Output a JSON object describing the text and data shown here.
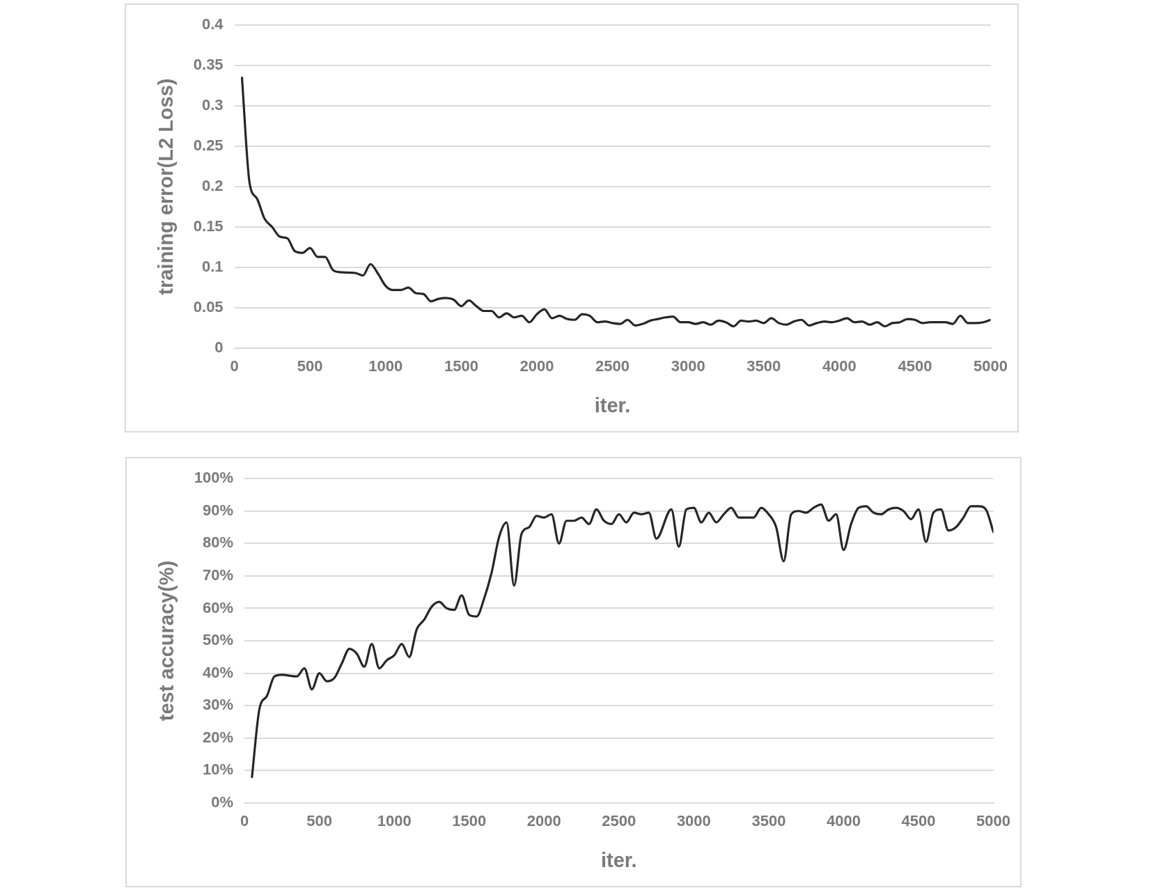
{
  "chart_data": [
    {
      "type": "line",
      "xlabel": "iter.",
      "ylabel": "training error(L2 Loss)",
      "xlim": [
        0,
        5000
      ],
      "xticks": [
        0,
        500,
        1000,
        1500,
        2000,
        2500,
        3000,
        3500,
        4000,
        4500,
        5000
      ],
      "ylim": [
        0,
        0.4
      ],
      "yticks": [
        0,
        0.05,
        0.1,
        0.15,
        0.2,
        0.25,
        0.3,
        0.35,
        0.4
      ],
      "grid": "y",
      "legend": false,
      "marker": "none",
      "line_style": "solid",
      "x": [
        50,
        100,
        150,
        200,
        250,
        300,
        350,
        400,
        450,
        500,
        550,
        600,
        650,
        700,
        800,
        850,
        900,
        950,
        1000,
        1050,
        1100,
        1150,
        1200,
        1250,
        1300,
        1350,
        1400,
        1450,
        1500,
        1550,
        1600,
        1650,
        1700,
        1750,
        1800,
        1850,
        1900,
        1950,
        2000,
        2050,
        2100,
        2150,
        2200,
        2250,
        2300,
        2350,
        2400,
        2450,
        2500,
        2550,
        2600,
        2650,
        2700,
        2750,
        2800,
        2850,
        2900,
        2950,
        3000,
        3050,
        3100,
        3150,
        3200,
        3250,
        3300,
        3350,
        3400,
        3450,
        3500,
        3550,
        3600,
        3650,
        3700,
        3750,
        3800,
        3850,
        3900,
        3950,
        4000,
        4050,
        4100,
        4150,
        4200,
        4250,
        4300,
        4350,
        4400,
        4450,
        4500,
        4550,
        4600,
        4700,
        4750,
        4800,
        4850,
        4900,
        4950,
        5000
      ],
      "series": [
        {
          "color": "#262626",
          "values": [
            0.335,
            0.205,
            0.185,
            0.16,
            0.15,
            0.138,
            0.136,
            0.12,
            0.118,
            0.124,
            0.113,
            0.113,
            0.097,
            0.094,
            0.093,
            0.09,
            0.104,
            0.092,
            0.077,
            0.072,
            0.072,
            0.075,
            0.068,
            0.067,
            0.058,
            0.061,
            0.062,
            0.06,
            0.052,
            0.059,
            0.052,
            0.046,
            0.046,
            0.038,
            0.043,
            0.038,
            0.04,
            0.032,
            0.042,
            0.048,
            0.037,
            0.04,
            0.036,
            0.035,
            0.042,
            0.04,
            0.032,
            0.033,
            0.031,
            0.03,
            0.035,
            0.028,
            0.03,
            0.034,
            0.036,
            0.038,
            0.039,
            0.032,
            0.032,
            0.03,
            0.032,
            0.029,
            0.034,
            0.032,
            0.027,
            0.034,
            0.033,
            0.034,
            0.031,
            0.037,
            0.031,
            0.029,
            0.033,
            0.035,
            0.028,
            0.031,
            0.033,
            0.032,
            0.034,
            0.037,
            0.032,
            0.033,
            0.029,
            0.032,
            0.027,
            0.031,
            0.032,
            0.036,
            0.035,
            0.031,
            0.032,
            0.032,
            0.03,
            0.04,
            0.031,
            0.031,
            0.032,
            0.035
          ]
        }
      ]
    },
    {
      "type": "line",
      "xlabel": "iter.",
      "ylabel": "test accuracy(%)",
      "xlim": [
        0,
        5000
      ],
      "xticks": [
        0,
        500,
        1000,
        1500,
        2000,
        2500,
        3000,
        3500,
        4000,
        4500,
        5000
      ],
      "ylim": [
        0,
        100
      ],
      "yticks": [
        {
          "value": 0,
          "label": "0%"
        },
        {
          "value": 10,
          "label": "10%"
        },
        {
          "value": 20,
          "label": "20%"
        },
        {
          "value": 30,
          "label": "30%"
        },
        {
          "value": 40,
          "label": "40%"
        },
        {
          "value": 50,
          "label": "50%"
        },
        {
          "value": 60,
          "label": "60%"
        },
        {
          "value": 70,
          "label": "70%"
        },
        {
          "value": 80,
          "label": "80%"
        },
        {
          "value": 90,
          "label": "90%"
        },
        {
          "value": 100,
          "label": "100%"
        }
      ],
      "grid": "y",
      "legend": false,
      "marker": "none",
      "line_style": "solid",
      "x": [
        50,
        100,
        150,
        200,
        250,
        350,
        400,
        450,
        500,
        550,
        600,
        650,
        700,
        750,
        800,
        850,
        900,
        950,
        1000,
        1050,
        1100,
        1150,
        1200,
        1250,
        1300,
        1350,
        1400,
        1450,
        1500,
        1550,
        1600,
        1650,
        1700,
        1750,
        1800,
        1850,
        1900,
        1950,
        2000,
        2050,
        2100,
        2150,
        2200,
        2250,
        2300,
        2350,
        2400,
        2450,
        2500,
        2550,
        2600,
        2650,
        2700,
        2750,
        2850,
        2900,
        2950,
        3000,
        3050,
        3100,
        3150,
        3200,
        3250,
        3300,
        3350,
        3400,
        3450,
        3500,
        3550,
        3600,
        3650,
        3700,
        3750,
        3800,
        3850,
        3900,
        3950,
        4000,
        4050,
        4100,
        4150,
        4200,
        4250,
        4300,
        4350,
        4400,
        4450,
        4500,
        4550,
        4600,
        4650,
        4700,
        4750,
        4800,
        4850,
        4900,
        4950,
        5000
      ],
      "series": [
        {
          "color": "#262626",
          "values": [
            8,
            29,
            33,
            39,
            39.5,
            39,
            41.5,
            35,
            40,
            37.5,
            38.5,
            43,
            47.5,
            46,
            42,
            49,
            41.5,
            44,
            45.5,
            49,
            45,
            53.5,
            56.5,
            60.5,
            62,
            60,
            59.5,
            64,
            58,
            57.5,
            63,
            71,
            82,
            86.5,
            67,
            83,
            85,
            88.5,
            88,
            89,
            80,
            87,
            87,
            88,
            86,
            90.5,
            87,
            86,
            89,
            86.5,
            89.5,
            89,
            89.5,
            81.5,
            90.5,
            79,
            90.5,
            91,
            86.5,
            89.5,
            86.5,
            89,
            91,
            88,
            88,
            88,
            91,
            89,
            85,
            74.5,
            89,
            90,
            89.5,
            91,
            92,
            87,
            89,
            78,
            86,
            91,
            91.5,
            89.5,
            89,
            90.5,
            91,
            90,
            87.5,
            90.5,
            80.5,
            89.5,
            90.5,
            84,
            85,
            88,
            91.5,
            91.5,
            90.5,
            83.5
          ]
        }
      ]
    }
  ]
}
